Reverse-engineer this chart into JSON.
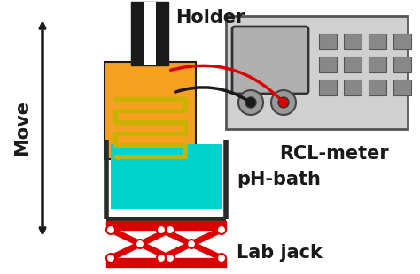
{
  "bg_color": "#ffffff",
  "holder_color": "#1a1a1a",
  "sensor_body_color": "#f5a020",
  "sensor_coil_color": "#c8b400",
  "beaker_color": "#2a2a2a",
  "liquid_color": "#00d4cc",
  "rcl_color": "#d0d0d0",
  "rcl_border": "#555555",
  "jack_color": "#dd0000",
  "text_holder": "Holder",
  "text_rcl": "RCL-meter",
  "text_ph": "pH-bath",
  "text_jack": "Lab jack",
  "text_move": "Move",
  "font_size_label": 13,
  "wire_red": "#dd0000",
  "wire_black": "#1a1a1a",
  "figw": 4.74,
  "figh": 3.1,
  "dpi": 100
}
